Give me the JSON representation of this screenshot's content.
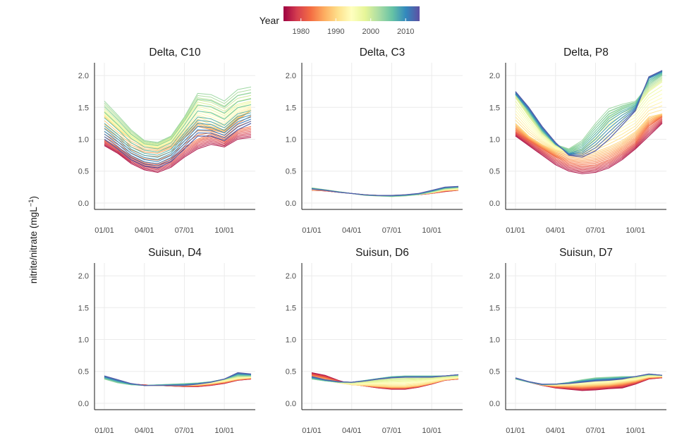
{
  "chart_data": {
    "type": "line",
    "ylabel_main": "nitrite/nitrate (mgL",
    "ylabel_sup": "−1",
    "ylabel_close": ")",
    "ylim": [
      -0.1,
      2.2
    ],
    "yticks": [
      "0.0",
      "0.5",
      "1.0",
      "1.5",
      "2.0"
    ],
    "xticks": [
      "01/01",
      "04/01",
      "07/01",
      "10/01"
    ],
    "grid": true,
    "legend": {
      "title": "Year",
      "position": "top",
      "labels": [
        "1980",
        "1990",
        "2000",
        "2010"
      ],
      "range": [
        1975,
        2014
      ],
      "colors": [
        "#9e0142",
        "#d53e4f",
        "#f46d43",
        "#fdae61",
        "#fee08b",
        "#ffffbf",
        "#e6f598",
        "#abdda4",
        "#66c2a5",
        "#3288bd",
        "#5e4fa2"
      ]
    },
    "panels": [
      {
        "title": "Delta, C10",
        "curves": [
          {
            "year": 1976,
            "values": [
              0.9,
              0.78,
              0.62,
              0.52,
              0.48,
              0.56,
              0.72,
              0.85,
              0.92,
              0.88,
              1.0,
              1.03
            ]
          },
          {
            "year": 1983,
            "values": [
              1.0,
              0.88,
              0.74,
              0.64,
              0.62,
              0.7,
              0.88,
              1.0,
              1.08,
              1.0,
              1.15,
              1.2
            ]
          },
          {
            "year": 1986,
            "values": [
              1.12,
              1.0,
              0.88,
              0.8,
              0.78,
              0.86,
              1.02,
              1.2,
              1.15,
              1.1,
              1.3,
              1.45
            ]
          },
          {
            "year": 1990,
            "values": [
              1.35,
              1.15,
              1.0,
              0.9,
              0.86,
              0.94,
              1.1,
              1.28,
              1.2,
              1.15,
              1.35,
              1.45
            ]
          },
          {
            "year": 1998,
            "values": [
              1.45,
              1.25,
              1.05,
              0.92,
              0.9,
              1.0,
              1.28,
              1.55,
              1.5,
              1.4,
              1.55,
              1.6
            ]
          },
          {
            "year": 2003,
            "values": [
              1.6,
              1.38,
              1.15,
              0.98,
              0.95,
              1.05,
              1.35,
              1.72,
              1.7,
              1.6,
              1.78,
              1.82
            ]
          },
          {
            "year": 2007,
            "values": [
              1.25,
              1.08,
              0.88,
              0.78,
              0.75,
              0.84,
              1.1,
              1.35,
              1.32,
              1.22,
              1.4,
              1.45
            ]
          },
          {
            "year": 2013,
            "values": [
              1.0,
              0.85,
              0.68,
              0.58,
              0.55,
              0.65,
              0.85,
              1.05,
              1.05,
              0.98,
              1.15,
              1.25
            ]
          }
        ]
      },
      {
        "title": "Delta, C3",
        "curves": [
          {
            "year": 1976,
            "values": [
              0.2,
              0.19,
              0.17,
              0.15,
              0.13,
              0.12,
              0.12,
              0.12,
              0.13,
              0.15,
              0.18,
              0.2
            ]
          },
          {
            "year": 1990,
            "values": [
              0.21,
              0.2,
              0.17,
              0.15,
              0.13,
              0.12,
              0.12,
              0.13,
              0.14,
              0.16,
              0.2,
              0.21
            ]
          },
          {
            "year": 2000,
            "values": [
              0.24,
              0.21,
              0.18,
              0.15,
              0.12,
              0.11,
              0.1,
              0.11,
              0.13,
              0.17,
              0.22,
              0.24
            ]
          },
          {
            "year": 2013,
            "values": [
              0.22,
              0.2,
              0.17,
              0.15,
              0.13,
              0.12,
              0.12,
              0.13,
              0.15,
              0.2,
              0.25,
              0.26
            ]
          }
        ]
      },
      {
        "title": "Delta, P8",
        "curves": [
          {
            "year": 1976,
            "values": [
              1.05,
              0.9,
              0.75,
              0.6,
              0.5,
              0.46,
              0.48,
              0.55,
              0.68,
              0.85,
              1.05,
              1.25
            ]
          },
          {
            "year": 1982,
            "values": [
              1.12,
              0.98,
              0.85,
              0.72,
              0.62,
              0.58,
              0.6,
              0.68,
              0.8,
              0.95,
              1.2,
              1.35
            ]
          },
          {
            "year": 1990,
            "values": [
              1.25,
              1.05,
              0.92,
              0.82,
              0.78,
              0.76,
              0.8,
              0.88,
              0.98,
              1.12,
              1.35,
              1.4
            ]
          },
          {
            "year": 1998,
            "values": [
              1.65,
              1.35,
              1.08,
              0.9,
              0.8,
              0.85,
              1.05,
              1.25,
              1.38,
              1.48,
              1.75,
              1.9
            ]
          },
          {
            "year": 2003,
            "values": [
              1.72,
              1.42,
              1.12,
              0.92,
              0.85,
              0.98,
              1.25,
              1.48,
              1.55,
              1.6,
              1.85,
              2.0
            ]
          },
          {
            "year": 2008,
            "values": [
              1.7,
              1.45,
              1.15,
              0.92,
              0.78,
              0.85,
              1.05,
              1.28,
              1.42,
              1.52,
              1.95,
              2.05
            ]
          },
          {
            "year": 2013,
            "values": [
              1.75,
              1.5,
              1.2,
              0.95,
              0.75,
              0.72,
              0.82,
              1.0,
              1.22,
              1.45,
              1.98,
              2.08
            ]
          }
        ]
      },
      {
        "title": "Suisun, D4",
        "curves": [
          {
            "year": 1976,
            "values": [
              0.4,
              0.35,
              0.3,
              0.29,
              0.28,
              0.27,
              0.26,
              0.26,
              0.28,
              0.31,
              0.36,
              0.38
            ]
          },
          {
            "year": 1990,
            "values": [
              0.41,
              0.35,
              0.3,
              0.28,
              0.28,
              0.28,
              0.28,
              0.29,
              0.31,
              0.34,
              0.38,
              0.4
            ]
          },
          {
            "year": 2003,
            "values": [
              0.38,
              0.32,
              0.29,
              0.28,
              0.29,
              0.3,
              0.31,
              0.32,
              0.34,
              0.38,
              0.43,
              0.43
            ]
          },
          {
            "year": 2013,
            "values": [
              0.43,
              0.37,
              0.31,
              0.28,
              0.28,
              0.28,
              0.28,
              0.3,
              0.33,
              0.38,
              0.48,
              0.46
            ]
          }
        ]
      },
      {
        "title": "Suisun, D6",
        "curves": [
          {
            "year": 1976,
            "values": [
              0.48,
              0.44,
              0.36,
              0.3,
              0.27,
              0.24,
              0.22,
              0.22,
              0.25,
              0.3,
              0.36,
              0.38
            ]
          },
          {
            "year": 1990,
            "values": [
              0.4,
              0.36,
              0.32,
              0.29,
              0.28,
              0.27,
              0.26,
              0.26,
              0.28,
              0.32,
              0.37,
              0.39
            ]
          },
          {
            "year": 2003,
            "values": [
              0.38,
              0.35,
              0.33,
              0.33,
              0.36,
              0.39,
              0.42,
              0.43,
              0.43,
              0.43,
              0.43,
              0.44
            ]
          },
          {
            "year": 2013,
            "values": [
              0.42,
              0.37,
              0.34,
              0.33,
              0.35,
              0.38,
              0.4,
              0.41,
              0.41,
              0.41,
              0.43,
              0.45
            ]
          }
        ]
      },
      {
        "title": "Suisun, D7",
        "curves": [
          {
            "year": 1976,
            "values": [
              0.38,
              0.33,
              0.28,
              0.24,
              0.22,
              0.2,
              0.21,
              0.23,
              0.24,
              0.3,
              0.38,
              0.4
            ]
          },
          {
            "year": 1990,
            "values": [
              0.39,
              0.34,
              0.29,
              0.28,
              0.28,
              0.28,
              0.29,
              0.3,
              0.33,
              0.36,
              0.41,
              0.42
            ]
          },
          {
            "year": 2003,
            "values": [
              0.38,
              0.33,
              0.29,
              0.3,
              0.33,
              0.37,
              0.4,
              0.41,
              0.42,
              0.42,
              0.45,
              0.44
            ]
          },
          {
            "year": 2013,
            "values": [
              0.4,
              0.34,
              0.3,
              0.3,
              0.31,
              0.33,
              0.35,
              0.36,
              0.38,
              0.42,
              0.46,
              0.44
            ]
          }
        ]
      }
    ]
  }
}
